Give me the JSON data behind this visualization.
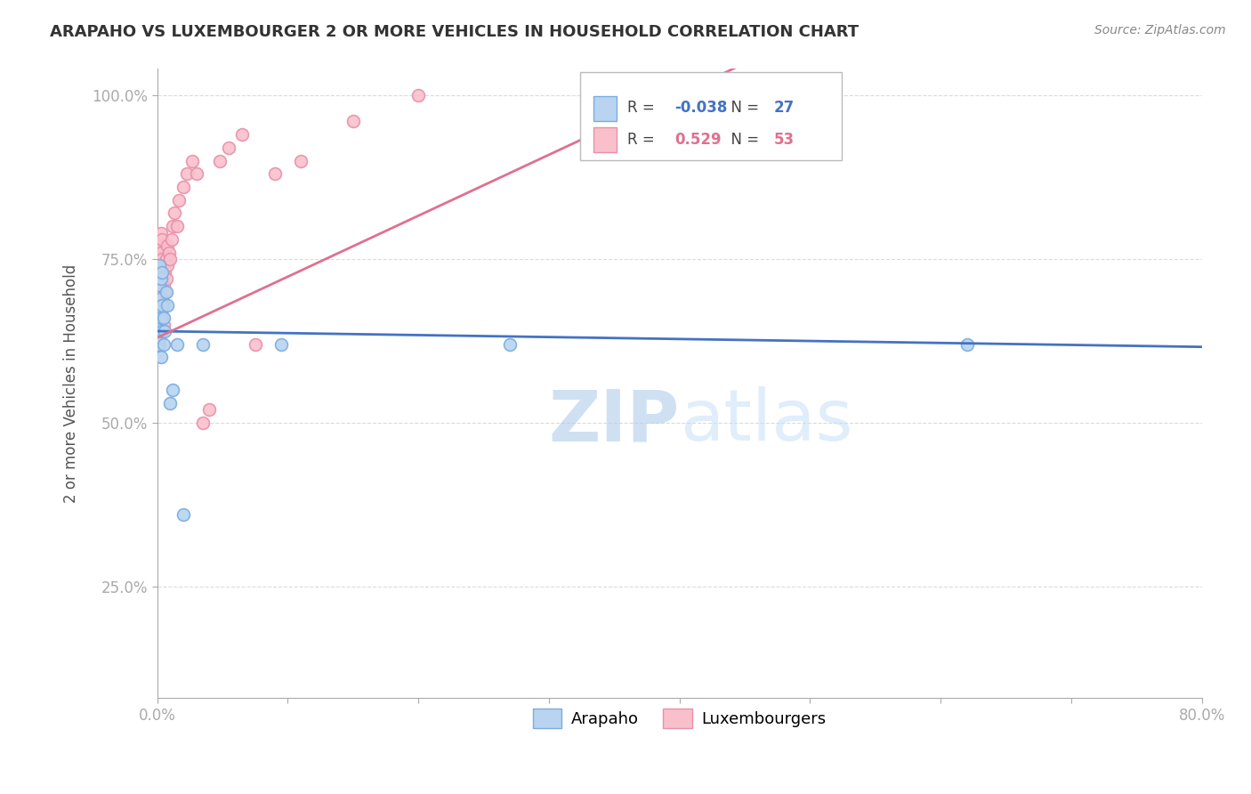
{
  "title": "ARAPAHO VS LUXEMBOURGER 2 OR MORE VEHICLES IN HOUSEHOLD CORRELATION CHART",
  "source": "Source: ZipAtlas.com",
  "ylabel": "2 or more Vehicles in Household",
  "x_min": 0.0,
  "x_max": 0.8,
  "y_min": 0.08,
  "y_max": 1.04,
  "x_ticks": [
    0.0,
    0.1,
    0.2,
    0.3,
    0.4,
    0.5,
    0.6,
    0.7,
    0.8
  ],
  "x_tick_labels_show": [
    "0.0%",
    "",
    "",
    "",
    "",
    "",
    "",
    "",
    "80.0%"
  ],
  "y_ticks": [
    0.25,
    0.5,
    0.75,
    1.0
  ],
  "y_tick_labels": [
    "25.0%",
    "50.0%",
    "75.0%",
    "100.0%"
  ],
  "arapaho_color": "#b8d4f0",
  "arapaho_edge_color": "#7aace0",
  "luxembourger_color": "#f9c0cc",
  "luxembourger_edge_color": "#e890a8",
  "arapaho_line_color": "#4472c4",
  "luxembourger_line_color": "#e07090",
  "watermark_color": "#c8dff8",
  "R_arapaho": -0.038,
  "N_arapaho": 27,
  "R_luxembourger": 0.529,
  "N_luxembourger": 53,
  "arapaho_x": [
    0.001,
    0.001,
    0.001,
    0.002,
    0.002,
    0.002,
    0.002,
    0.003,
    0.003,
    0.003,
    0.003,
    0.004,
    0.004,
    0.004,
    0.005,
    0.005,
    0.006,
    0.007,
    0.008,
    0.01,
    0.012,
    0.015,
    0.02,
    0.035,
    0.095,
    0.27,
    0.62
  ],
  "arapaho_y": [
    0.62,
    0.65,
    0.68,
    0.63,
    0.67,
    0.71,
    0.74,
    0.66,
    0.69,
    0.72,
    0.6,
    0.64,
    0.68,
    0.73,
    0.62,
    0.66,
    0.64,
    0.7,
    0.68,
    0.53,
    0.55,
    0.62,
    0.36,
    0.62,
    0.62,
    0.62,
    0.62
  ],
  "luxembourger_x": [
    0.001,
    0.001,
    0.001,
    0.001,
    0.001,
    0.002,
    0.002,
    0.002,
    0.002,
    0.002,
    0.002,
    0.003,
    0.003,
    0.003,
    0.003,
    0.003,
    0.003,
    0.004,
    0.004,
    0.004,
    0.004,
    0.004,
    0.005,
    0.005,
    0.005,
    0.005,
    0.006,
    0.006,
    0.007,
    0.007,
    0.008,
    0.008,
    0.009,
    0.01,
    0.011,
    0.012,
    0.013,
    0.015,
    0.017,
    0.02,
    0.023,
    0.027,
    0.03,
    0.035,
    0.04,
    0.048,
    0.055,
    0.065,
    0.075,
    0.09,
    0.11,
    0.15,
    0.2
  ],
  "luxembourger_y": [
    0.64,
    0.67,
    0.7,
    0.73,
    0.76,
    0.62,
    0.65,
    0.68,
    0.71,
    0.74,
    0.77,
    0.64,
    0.67,
    0.7,
    0.73,
    0.76,
    0.79,
    0.66,
    0.69,
    0.72,
    0.75,
    0.78,
    0.65,
    0.68,
    0.71,
    0.74,
    0.7,
    0.73,
    0.72,
    0.75,
    0.74,
    0.77,
    0.76,
    0.75,
    0.78,
    0.8,
    0.82,
    0.8,
    0.84,
    0.86,
    0.88,
    0.9,
    0.88,
    0.5,
    0.52,
    0.9,
    0.92,
    0.94,
    0.62,
    0.88,
    0.9,
    0.96,
    1.0
  ],
  "background_color": "#ffffff",
  "grid_color": "#cccccc",
  "title_color": "#333333",
  "axis_color": "#4472c4",
  "marker_size": 100,
  "legend_text_color_blue": "#4472c4",
  "legend_text_color_pink": "#e07090"
}
